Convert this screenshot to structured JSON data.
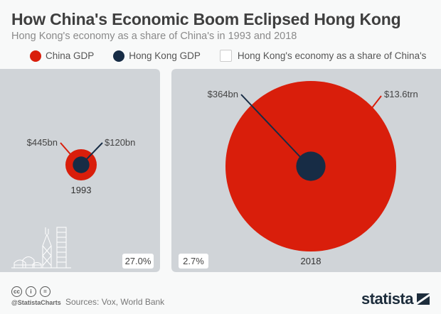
{
  "header": {
    "title": "How China's Economic Boom Eclipsed Hong Kong",
    "subtitle": "Hong Kong's economy as a share of China's in 1993 and 2018"
  },
  "legend": {
    "items": [
      {
        "label": "China GDP",
        "color": "#d91e0b"
      },
      {
        "label": "Hong Kong GDP",
        "color": "#172c45"
      },
      {
        "label": "Hong Kong's economy as a share of China's",
        "color": "#ffffff"
      }
    ]
  },
  "chart_data": {
    "type": "nested-circles",
    "title": "How China's Economic Boom Eclipsed Hong Kong",
    "subtitle": "Hong Kong's economy as a share of China's in 1993 and 2018",
    "series": [
      {
        "name": "China GDP",
        "color": "#d91e0b"
      },
      {
        "name": "Hong Kong GDP",
        "color": "#172c45"
      }
    ],
    "panels": [
      {
        "year": "1993",
        "china_gdp_usd_bn": 445,
        "china_label": "$445bn",
        "hk_gdp_usd_bn": 120,
        "hk_label": "$120bn",
        "share_label": "27.0%",
        "share_pct": 27.0
      },
      {
        "year": "2018",
        "china_gdp_usd_bn": 13600,
        "china_label": "$13.6trn",
        "hk_gdp_usd_bn": 364,
        "hk_label": "$364bn",
        "share_label": "2.7%",
        "share_pct": 2.7
      }
    ]
  },
  "footer": {
    "handle": "@StatistaCharts",
    "sources": "Sources: Vox, World Bank",
    "cc_icons": [
      "cc",
      "by",
      "nd"
    ],
    "brand": "statista"
  },
  "colors": {
    "panel_bg": "#d0d4d8",
    "page_bg": "#f8f9f9"
  }
}
